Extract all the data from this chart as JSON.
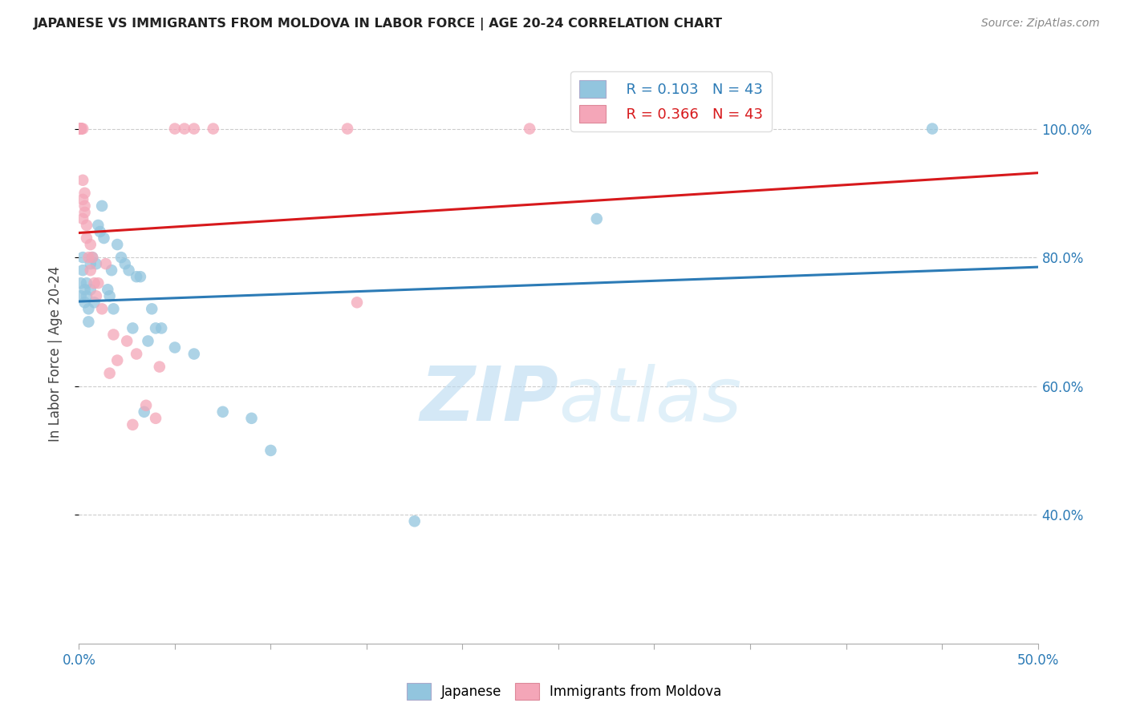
{
  "title": "JAPANESE VS IMMIGRANTS FROM MOLDOVA IN LABOR FORCE | AGE 20-24 CORRELATION CHART",
  "source": "Source: ZipAtlas.com",
  "ylabel": "In Labor Force | Age 20-24",
  "xlim": [
    0.0,
    0.5
  ],
  "ylim": [
    0.2,
    1.1
  ],
  "legend_r_japanese": "R = 0.103",
  "legend_n_japanese": "N = 43",
  "legend_r_moldova": "R = 0.366",
  "legend_n_moldova": "N = 43",
  "blue_color": "#92c5de",
  "pink_color": "#f4a6b8",
  "blue_line_color": "#2c7bb6",
  "pink_line_color": "#d7191c",
  "watermark_zip": "ZIP",
  "watermark_atlas": "atlas",
  "japanese_x": [
    0.001,
    0.001,
    0.002,
    0.002,
    0.003,
    0.003,
    0.004,
    0.004,
    0.005,
    0.005,
    0.006,
    0.006,
    0.007,
    0.008,
    0.009,
    0.01,
    0.011,
    0.012,
    0.013,
    0.015,
    0.016,
    0.017,
    0.018,
    0.02,
    0.022,
    0.024,
    0.026,
    0.028,
    0.03,
    0.032,
    0.034,
    0.036,
    0.038,
    0.04,
    0.043,
    0.05,
    0.06,
    0.075,
    0.09,
    0.1,
    0.175,
    0.27,
    0.445
  ],
  "japanese_y": [
    0.74,
    0.76,
    0.8,
    0.78,
    0.75,
    0.73,
    0.76,
    0.74,
    0.72,
    0.7,
    0.79,
    0.75,
    0.8,
    0.73,
    0.79,
    0.85,
    0.84,
    0.88,
    0.83,
    0.75,
    0.74,
    0.78,
    0.72,
    0.82,
    0.8,
    0.79,
    0.78,
    0.69,
    0.77,
    0.77,
    0.56,
    0.67,
    0.72,
    0.69,
    0.69,
    0.66,
    0.65,
    0.56,
    0.55,
    0.5,
    0.39,
    0.86,
    1.0
  ],
  "moldova_x": [
    0.001,
    0.001,
    0.001,
    0.001,
    0.001,
    0.001,
    0.001,
    0.001,
    0.001,
    0.002,
    0.002,
    0.002,
    0.002,
    0.003,
    0.003,
    0.003,
    0.004,
    0.004,
    0.005,
    0.006,
    0.006,
    0.007,
    0.008,
    0.009,
    0.01,
    0.012,
    0.014,
    0.016,
    0.018,
    0.02,
    0.025,
    0.028,
    0.03,
    0.035,
    0.04,
    0.042,
    0.05,
    0.055,
    0.06,
    0.07,
    0.14,
    0.145,
    0.235
  ],
  "moldova_y": [
    1.0,
    1.0,
    1.0,
    1.0,
    1.0,
    1.0,
    1.0,
    1.0,
    1.0,
    1.0,
    0.92,
    0.89,
    0.86,
    0.9,
    0.87,
    0.88,
    0.85,
    0.83,
    0.8,
    0.82,
    0.78,
    0.8,
    0.76,
    0.74,
    0.76,
    0.72,
    0.79,
    0.62,
    0.68,
    0.64,
    0.67,
    0.54,
    0.65,
    0.57,
    0.55,
    0.63,
    1.0,
    1.0,
    1.0,
    1.0,
    1.0,
    0.73,
    1.0
  ]
}
